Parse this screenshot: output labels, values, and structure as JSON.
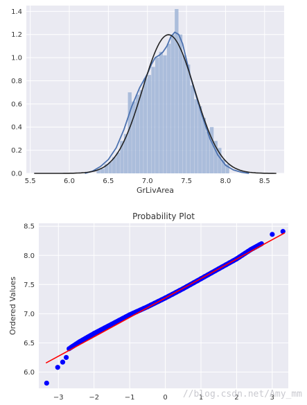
{
  "chart_data": [
    {
      "type": "bar",
      "title": "",
      "xlabel": "GrLivArea",
      "ylabel": "",
      "xlim": [
        5.45,
        8.75
      ],
      "ylim": [
        0,
        1.45
      ],
      "xticks": [
        "5.5",
        "6.0",
        "6.5",
        "7.0",
        "7.5",
        "8.0",
        "8.5"
      ],
      "yticks": [
        "0.0",
        "0.2",
        "0.4",
        "0.6",
        "0.8",
        "1.0",
        "1.2",
        "1.4"
      ],
      "grid": true,
      "bin_edges": [
        6.35,
        6.4,
        6.45,
        6.5,
        6.55,
        6.6,
        6.65,
        6.7,
        6.75,
        6.8,
        6.85,
        6.9,
        6.95,
        7.0,
        7.05,
        7.1,
        7.15,
        7.2,
        7.25,
        7.3,
        7.35,
        7.4,
        7.45,
        7.5,
        7.55,
        7.6,
        7.65,
        7.7,
        7.75,
        7.8,
        7.85,
        7.9,
        7.95,
        8.0,
        8.05
      ],
      "values": [
        0.03,
        0.04,
        0.08,
        0.1,
        0.14,
        0.18,
        0.28,
        0.34,
        0.7,
        0.62,
        0.68,
        0.72,
        0.82,
        0.85,
        0.92,
        1.0,
        1.05,
        1.02,
        1.12,
        1.2,
        1.42,
        1.2,
        1.02,
        0.94,
        0.76,
        0.64,
        0.58,
        0.48,
        0.36,
        0.4,
        0.28,
        0.22,
        0.12,
        0.08
      ],
      "series": [
        {
          "kind": "kde",
          "color": "#4c72b0",
          "x": [
            6.2,
            6.3,
            6.4,
            6.5,
            6.6,
            6.7,
            6.8,
            6.9,
            7.0,
            7.05,
            7.1,
            7.15,
            7.2,
            7.25,
            7.3,
            7.35,
            7.4,
            7.45,
            7.5,
            7.55,
            7.6,
            7.7,
            7.8,
            7.9,
            8.0,
            8.1,
            8.2,
            8.3
          ],
          "y": [
            0.0,
            0.02,
            0.06,
            0.12,
            0.22,
            0.38,
            0.58,
            0.74,
            0.86,
            0.94,
            1.0,
            1.02,
            1.05,
            1.1,
            1.18,
            1.22,
            1.2,
            1.12,
            0.98,
            0.84,
            0.72,
            0.5,
            0.3,
            0.16,
            0.07,
            0.03,
            0.01,
            0.0
          ]
        },
        {
          "kind": "normal-fit",
          "color": "#222222",
          "mean": 7.27,
          "std": 0.333
        }
      ],
      "bar_color": "#a4b8d8"
    },
    {
      "type": "scatter",
      "title": "Probability Plot",
      "xlabel": "",
      "ylabel": "Ordered Values",
      "xlim": [
        -3.55,
        3.45
      ],
      "ylim": [
        5.72,
        8.55
      ],
      "xticks": [
        "−3",
        "−2",
        "−1",
        "0",
        "1",
        "2",
        "3"
      ],
      "yticks": [
        "6.0",
        "6.5",
        "7.0",
        "7.5",
        "8.0",
        "8.5"
      ],
      "grid": true,
      "points_color": "#0000ff",
      "fit_line": {
        "color": "#ff0000",
        "slope": 0.333,
        "intercept": 7.27,
        "x_range": [
          -3.35,
          3.35
        ]
      },
      "outliers": [
        {
          "x": -3.33,
          "y": 5.81
        },
        {
          "x": -3.02,
          "y": 6.08
        },
        {
          "x": -2.88,
          "y": 6.17
        },
        {
          "x": -2.78,
          "y": 6.25
        },
        {
          "x": -2.7,
          "y": 6.4
        },
        {
          "x": 3.0,
          "y": 8.36
        },
        {
          "x": 3.3,
          "y": 8.41
        }
      ],
      "dense_curve": {
        "x": [
          -2.65,
          -2.4,
          -2.0,
          -1.5,
          -1.0,
          -0.5,
          0.0,
          0.5,
          1.0,
          1.5,
          2.0,
          2.4,
          2.7
        ],
        "y": [
          6.42,
          6.52,
          6.66,
          6.82,
          6.98,
          7.12,
          7.27,
          7.43,
          7.6,
          7.77,
          7.94,
          8.1,
          8.2
        ]
      }
    }
  ],
  "watermark": "//blog.csdn.net/Amy_mm"
}
